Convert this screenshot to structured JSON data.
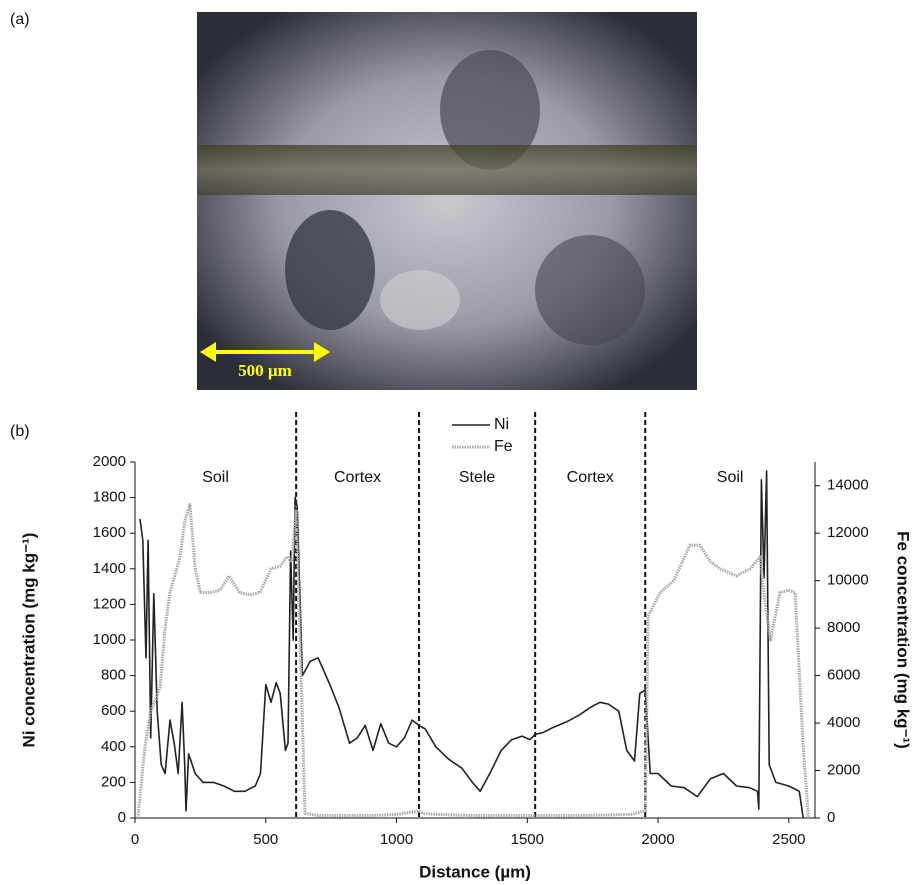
{
  "panel_labels": [
    "(a)",
    "(b)"
  ],
  "photo": {
    "scale_label": "500 µm"
  },
  "chart_data": {
    "type": "line",
    "xlabel": "Distance (µm)",
    "ylabel": "Ni concentration (mg kg⁻¹)",
    "y2label": "Fe concentration (mg kg⁻¹)",
    "xlim": [
      0,
      2600
    ],
    "xticks": [
      0,
      500,
      1000,
      1500,
      2000,
      2500
    ],
    "ylim": [
      0,
      2000
    ],
    "yticks": [
      0,
      200,
      400,
      600,
      800,
      1000,
      1200,
      1400,
      1600,
      1800,
      2000
    ],
    "y2lim": [
      0,
      15000
    ],
    "y2ticks": [
      0,
      2000,
      4000,
      6000,
      8000,
      10000,
      12000,
      14000
    ],
    "boundaries": [
      616,
      1086,
      1530,
      1951
    ],
    "annotations": [
      "Soil",
      "Cortex",
      "Stele",
      "Cortex",
      "Soil"
    ],
    "legend": "top",
    "series": [
      {
        "name": "Ni",
        "color": "#222222",
        "style": "solid",
        "axis": "y",
        "x": [
          19,
          30,
          42,
          50,
          60,
          72,
          85,
          100,
          115,
          134,
          150,
          165,
          180,
          190,
          195,
          205,
          230,
          260,
          300,
          340,
          380,
          420,
          460,
          480,
          500,
          520,
          540,
          555,
          575,
          585,
          595,
          605,
          612,
          620,
          640,
          670,
          700,
          745,
          780,
          820,
          850,
          880,
          910,
          940,
          970,
          1000,
          1030,
          1060,
          1086,
          1110,
          1150,
          1200,
          1250,
          1290,
          1320,
          1360,
          1400,
          1440,
          1480,
          1510,
          1530,
          1560,
          1600,
          1650,
          1700,
          1740,
          1778,
          1810,
          1850,
          1880,
          1910,
          1930,
          1951,
          1970,
          2000,
          2050,
          2100,
          2150,
          2200,
          2250,
          2300,
          2350,
          2380,
          2385,
          2395,
          2405,
          2415,
          2425,
          2450,
          2500,
          2540,
          2555
        ],
        "values": [
          1680,
          1560,
          900,
          1560,
          450,
          1260,
          600,
          300,
          250,
          550,
          420,
          250,
          650,
          300,
          40,
          360,
          250,
          200,
          200,
          180,
          150,
          150,
          180,
          250,
          750,
          650,
          760,
          700,
          380,
          420,
          1500,
          1000,
          1800,
          1750,
          800,
          880,
          900,
          750,
          620,
          420,
          450,
          520,
          380,
          530,
          420,
          400,
          450,
          550,
          520,
          500,
          400,
          330,
          280,
          200,
          150,
          260,
          380,
          440,
          460,
          440,
          470,
          480,
          510,
          540,
          580,
          620,
          650,
          640,
          600,
          380,
          320,
          700,
          720,
          250,
          250,
          180,
          170,
          120,
          220,
          250,
          180,
          170,
          150,
          50,
          1900,
          1350,
          1950,
          300,
          200,
          180,
          150,
          0
        ]
      },
      {
        "name": "Fe",
        "color": "#aaaaaa",
        "style": "dotted",
        "axis": "y2",
        "x": [
          11,
          38,
          60,
          96,
          115,
          134,
          172,
          190,
          210,
          230,
          250,
          290,
          325,
          360,
          400,
          440,
          478,
          520,
          555,
          580,
          600,
          616,
          630,
          650,
          700,
          800,
          900,
          1000,
          1086,
          1100,
          1150,
          1300,
          1500,
          1700,
          1900,
          1951,
          1962,
          2008,
          2060,
          2122,
          2160,
          2200,
          2237,
          2300,
          2352,
          2390,
          2410,
          2430,
          2466,
          2500,
          2524,
          2555,
          2575
        ],
        "values": [
          0,
          3000,
          4500,
          5500,
          8000,
          9500,
          11000,
          12500,
          13200,
          10500,
          9500,
          9500,
          9600,
          10200,
          9500,
          9400,
          9500,
          10500,
          10600,
          11000,
          10800,
          13000,
          8000,
          200,
          100,
          100,
          100,
          150,
          300,
          200,
          150,
          100,
          100,
          100,
          150,
          300,
          8500,
          9500,
          10000,
          11500,
          11500,
          10800,
          10500,
          10200,
          10500,
          11000,
          9000,
          7500,
          9500,
          9600,
          9500,
          3000,
          0
        ]
      }
    ]
  }
}
